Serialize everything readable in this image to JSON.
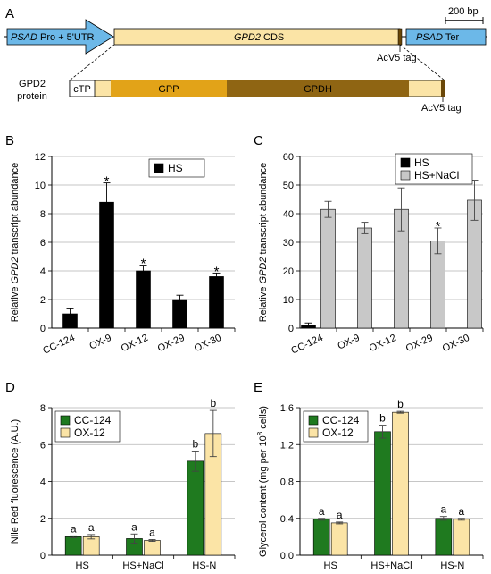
{
  "panel_a": {
    "letter": "A",
    "scale_label": "200 bp",
    "promoter_italic": "PSAD",
    "promoter_rest": " Pro + 5'UTR",
    "cds_italic": "GPD2",
    "cds_rest": " CDS",
    "tag_label": "AcV5 tag",
    "terminator_italic": "PSAD",
    "terminator_rest": " Ter",
    "protein_label_1": "GPD2",
    "protein_label_2": "protein",
    "domains": [
      "cTP",
      "GPP",
      "GPDH"
    ],
    "protein_tag_label": "AcV5 tag",
    "colors": {
      "promoter": "#6cb8e8",
      "cds": "#fbe4a6",
      "gpp": "#e2a318",
      "gpdh": "#8f6513",
      "tag": "#6a4708"
    }
  },
  "chart_data": [
    {
      "panel": "B",
      "type": "bar",
      "ylabel_pre": "Relative ",
      "ylabel_italic": "GPD2",
      "ylabel_post": " transcript abundance",
      "ylim": [
        0,
        12
      ],
      "yticks": [
        0,
        2,
        4,
        6,
        8,
        10,
        12
      ],
      "categories": [
        "CC-124",
        "OX-9",
        "OX-12",
        "OX-29",
        "OX-30"
      ],
      "series": [
        {
          "name": "HS",
          "color": "#000000",
          "values": [
            1.0,
            8.8,
            4.0,
            2.0,
            3.6
          ],
          "errors": [
            0.35,
            1.35,
            0.4,
            0.3,
            0.25
          ],
          "marks": [
            "",
            "*",
            "*",
            "",
            "*"
          ]
        }
      ],
      "legend": "top-right",
      "grid": true
    },
    {
      "panel": "C",
      "type": "bar",
      "ylabel_pre": "Relative ",
      "ylabel_italic": "GPD2",
      "ylabel_post": " transcript abundance",
      "ylim": [
        0,
        60
      ],
      "yticks": [
        0,
        10,
        20,
        30,
        40,
        50,
        60
      ],
      "categories": [
        "CC-124",
        "OX-9",
        "OX-12",
        "OX-29",
        "OX-30"
      ],
      "series": [
        {
          "name": "HS",
          "color": "#000000",
          "values": [
            1.0,
            0,
            0,
            0,
            0
          ],
          "errors": [
            0.8,
            0,
            0,
            0,
            0
          ],
          "marks": [
            "",
            "",
            "",
            "",
            ""
          ]
        },
        {
          "name": "HS+NaCl",
          "color": "#c8c8c8",
          "values": [
            41.5,
            35.0,
            41.5,
            30.5,
            44.7
          ],
          "errors": [
            2.8,
            2.0,
            7.5,
            4.5,
            7.0
          ],
          "marks": [
            "",
            "",
            "",
            "*",
            ""
          ]
        }
      ],
      "legend": "top-right",
      "grid": true
    },
    {
      "panel": "D",
      "type": "bar",
      "ylabel": "Nile Red fluorescence (A.U.)",
      "ylim": [
        0,
        8
      ],
      "yticks": [
        0,
        2,
        4,
        6,
        8
      ],
      "categories": [
        "HS",
        "HS+NaCl",
        "HS-N"
      ],
      "series": [
        {
          "name": "CC-124",
          "color": "#1f7a1f",
          "values": [
            1.0,
            0.9,
            5.1
          ],
          "errors": [
            0.05,
            0.25,
            0.55
          ],
          "marks": [
            "a",
            "a",
            "b"
          ]
        },
        {
          "name": "OX-12",
          "color": "#fbe4a6",
          "values": [
            1.0,
            0.8,
            6.6
          ],
          "errors": [
            0.12,
            0.05,
            1.25
          ],
          "marks": [
            "a",
            "a",
            "b"
          ]
        }
      ],
      "legend": "top-left",
      "grid": true
    },
    {
      "panel": "E",
      "type": "bar",
      "ylabel_pre": "Glycerol content (mg per 10",
      "ylabel_sup": "8",
      "ylabel_post": " cells)",
      "ylim": [
        0,
        1.6
      ],
      "yticks": [
        "0.0",
        "0.4",
        "0.8",
        "1.2",
        "1.6"
      ],
      "categories": [
        "HS",
        "HS+NaCl",
        "HS-N"
      ],
      "series": [
        {
          "name": "CC-124",
          "color": "#1f7a1f",
          "values": [
            0.39,
            1.34,
            0.4
          ],
          "errors": [
            0.01,
            0.07,
            0.02
          ],
          "marks": [
            "a",
            "b",
            "a"
          ]
        },
        {
          "name": "OX-12",
          "color": "#fbe4a6",
          "values": [
            0.35,
            1.55,
            0.39
          ],
          "errors": [
            0.01,
            0.01,
            0.01
          ],
          "marks": [
            "a",
            "b",
            "a"
          ]
        }
      ],
      "legend": "top-left",
      "grid": true
    }
  ]
}
